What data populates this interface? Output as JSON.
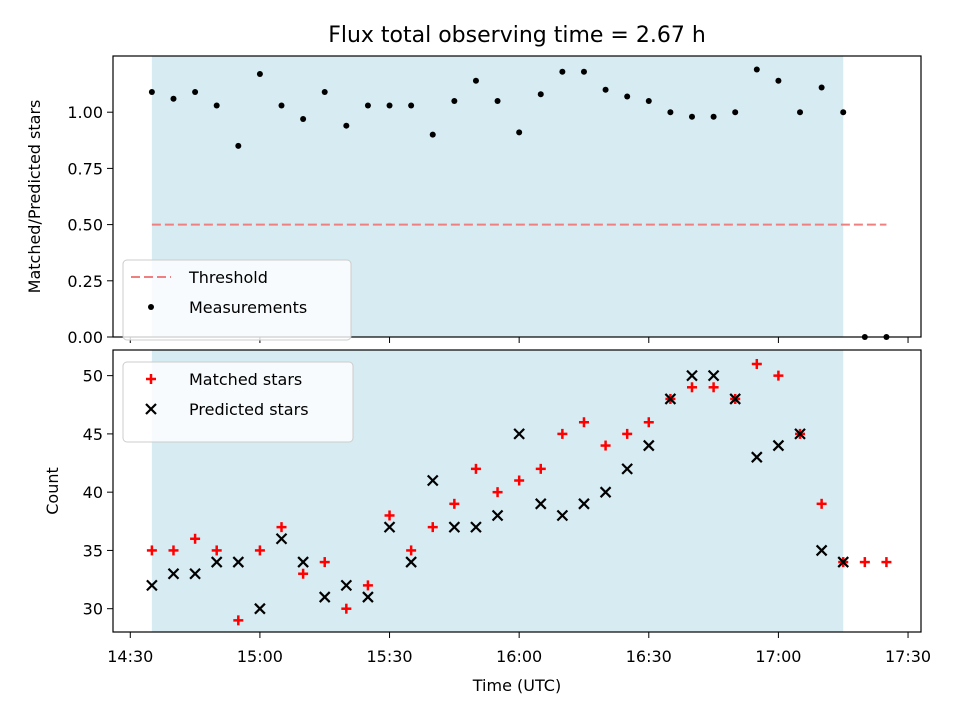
{
  "chart_data": {
    "type": "scatter",
    "title": "Flux total observing time = 2.67 h",
    "xlabel": "Time (UTC)",
    "x_tick_labels": [
      "14:30",
      "15:00",
      "15:30",
      "16:00",
      "16:30",
      "17:00",
      "17:30"
    ],
    "x_ticks_minutes": [
      870,
      900,
      930,
      960,
      990,
      1020,
      1050
    ],
    "xlim_minutes": [
      866,
      1053
    ],
    "shaded_span": {
      "start": "14:35",
      "end": "17:15",
      "color": "#add8e6"
    },
    "colors": {
      "matched": "#ff0000",
      "predicted": "#000000",
      "threshold": "#f08080",
      "shade": "#add8e6"
    },
    "times": [
      "14:35",
      "14:40",
      "14:45",
      "14:50",
      "14:55",
      "15:00",
      "15:05",
      "15:10",
      "15:15",
      "15:20",
      "15:25",
      "15:30",
      "15:35",
      "15:40",
      "15:45",
      "15:50",
      "15:55",
      "16:00",
      "16:05",
      "16:10",
      "16:15",
      "16:20",
      "16:25",
      "16:30",
      "16:35",
      "16:40",
      "16:45",
      "16:50",
      "16:55",
      "17:00",
      "17:05",
      "17:10",
      "17:15",
      "17:20",
      "17:25"
    ],
    "panels": [
      {
        "ylabel": "Matched/Predicted stars",
        "ylim": [
          0.0,
          1.25
        ],
        "y_tick_labels": [
          "0.00",
          "0.25",
          "0.50",
          "0.75",
          "1.00"
        ],
        "legend_position": "lower left",
        "threshold": {
          "name": "Threshold",
          "value": 0.5,
          "start": "14:35",
          "end": "17:25"
        },
        "series": [
          {
            "name": "Measurements",
            "values": [
              1.09,
              1.06,
              1.09,
              1.03,
              0.85,
              1.17,
              1.03,
              0.97,
              1.09,
              0.94,
              1.03,
              1.03,
              1.03,
              0.9,
              1.05,
              1.14,
              1.05,
              0.91,
              1.08,
              1.18,
              1.18,
              1.1,
              1.07,
              1.05,
              1.0,
              0.98,
              0.98,
              1.0,
              1.19,
              1.14,
              1.0,
              1.11,
              1.0,
              0.0,
              0.0
            ]
          }
        ]
      },
      {
        "ylabel": "Count",
        "ylim": [
          28,
          52.2
        ],
        "y_tick_labels": [
          "30",
          "35",
          "40",
          "45",
          "50"
        ],
        "legend_position": "upper left",
        "series": [
          {
            "name": "Matched stars",
            "marker": "+",
            "values": [
              35,
              35,
              36,
              35,
              29,
              35,
              37,
              33,
              34,
              30,
              32,
              38,
              35,
              37,
              39,
              42,
              40,
              41,
              42,
              45,
              46,
              44,
              45,
              46,
              48,
              49,
              49,
              48,
              51,
              50,
              45,
              39,
              34,
              34,
              34
            ]
          },
          {
            "name": "Predicted stars",
            "marker": "x",
            "values": [
              32,
              33,
              33,
              34,
              34,
              30,
              36,
              34,
              31,
              32,
              31,
              37,
              34,
              41,
              37,
              37,
              38,
              45,
              39,
              38,
              39,
              40,
              42,
              44,
              48,
              50,
              50,
              48,
              43,
              44,
              45,
              35,
              34,
              null,
              null
            ]
          }
        ]
      }
    ]
  }
}
